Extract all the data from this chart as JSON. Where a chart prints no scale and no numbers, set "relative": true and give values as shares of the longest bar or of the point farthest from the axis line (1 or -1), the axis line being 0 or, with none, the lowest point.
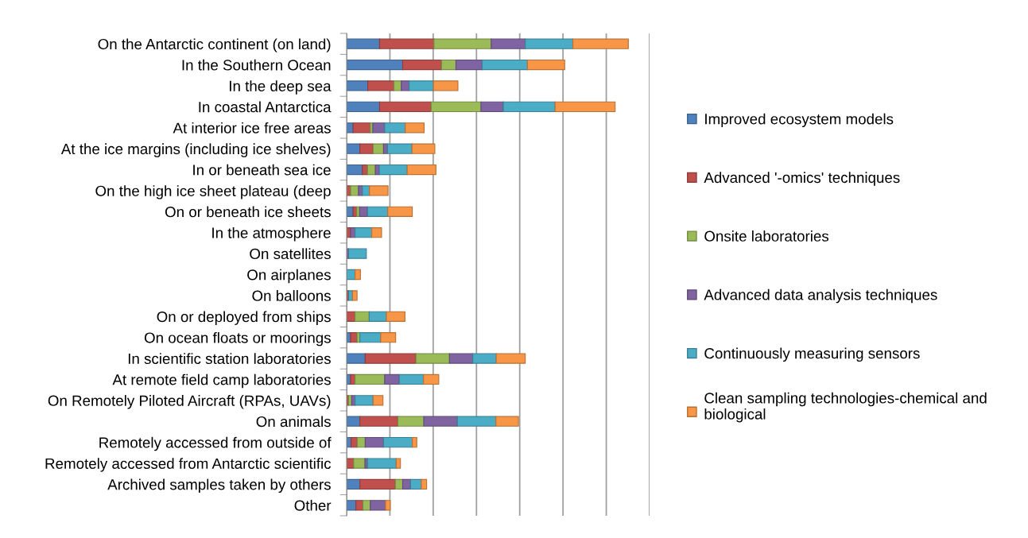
{
  "chart_data": {
    "type": "bar",
    "orientation": "horizontal",
    "stacked": true,
    "relative": true,
    "grid": "x",
    "legend": "right",
    "categories": [
      "On the Antarctic continent (on land)",
      "In the Southern Ocean",
      "In the deep sea",
      "In coastal Antarctica",
      "At interior ice free areas",
      "At the ice margins (including ice shelves)",
      "In or beneath sea ice",
      "On the high ice sheet plateau (deep",
      "On or beneath ice sheets",
      "In the atmosphere",
      "On satellites",
      "On airplanes",
      "On balloons",
      "On or deployed from ships",
      "On ocean floats or moorings",
      "In scientific station laboratories",
      "At remote field camp laboratories",
      "On Remotely Piloted Aircraft (RPAs, UAVs)",
      "On animals",
      "Remotely accessed from outside of",
      "Remotely accessed from Antarctic scientific",
      "Archived samples taken by others",
      "Other"
    ],
    "series": [
      {
        "name": "Improved ecosystem models",
        "color": "#4f81bd",
        "values": [
          0.117,
          0.199,
          0.075,
          0.117,
          0.023,
          0.047,
          0.056,
          null,
          0.023,
          null,
          null,
          null,
          null,
          null,
          0.014,
          0.066,
          0.014,
          null,
          0.047,
          0.016,
          null,
          0.047,
          0.033
        ]
      },
      {
        "name": "Advanced '-omics' techniques",
        "color": "#c0504d",
        "values": [
          0.193,
          0.138,
          0.093,
          0.183,
          0.061,
          0.047,
          0.018,
          0.014,
          0.013,
          0.014,
          null,
          null,
          0.007,
          0.03,
          0.023,
          0.18,
          0.016,
          0.007,
          0.135,
          0.022,
          0.025,
          0.126,
          0.025
        ]
      },
      {
        "name": "Onsite laboratories",
        "color": "#9bbb59",
        "values": [
          0.203,
          0.051,
          0.026,
          0.177,
          0.009,
          0.037,
          0.028,
          0.028,
          0.01,
          null,
          null,
          null,
          null,
          0.05,
          0.01,
          0.119,
          0.105,
          0.011,
          0.092,
          0.028,
          0.04,
          0.026,
          0.026
        ]
      },
      {
        "name": "Advanced data analysis techniques",
        "color": "#8064a2",
        "values": [
          0.121,
          0.093,
          0.028,
          0.079,
          0.042,
          0.014,
          0.014,
          0.014,
          0.028,
          0.016,
          0.007,
          null,
          null,
          null,
          null,
          0.083,
          0.052,
          0.012,
          0.119,
          0.065,
          0.009,
          0.028,
          0.054
        ]
      },
      {
        "name": "Continuously measuring sensors",
        "color": "#4bacc6",
        "values": [
          0.169,
          0.161,
          0.086,
          0.184,
          0.073,
          0.087,
          0.099,
          0.025,
          0.072,
          0.059,
          0.063,
          0.03,
          0.014,
          0.061,
          0.074,
          0.083,
          0.086,
          0.064,
          0.137,
          0.102,
          0.102,
          0.038,
          null
        ]
      },
      {
        "name": "Clean sampling technologies-chemical and biological",
        "color": "#f79646",
        "values": [
          0.197,
          0.132,
          0.087,
          0.213,
          0.067,
          0.081,
          0.102,
          0.066,
          0.087,
          0.035,
          null,
          0.019,
          0.016,
          0.066,
          0.053,
          0.103,
          0.054,
          0.035,
          0.08,
          0.016,
          0.015,
          0.019,
          0.017
        ]
      }
    ]
  }
}
